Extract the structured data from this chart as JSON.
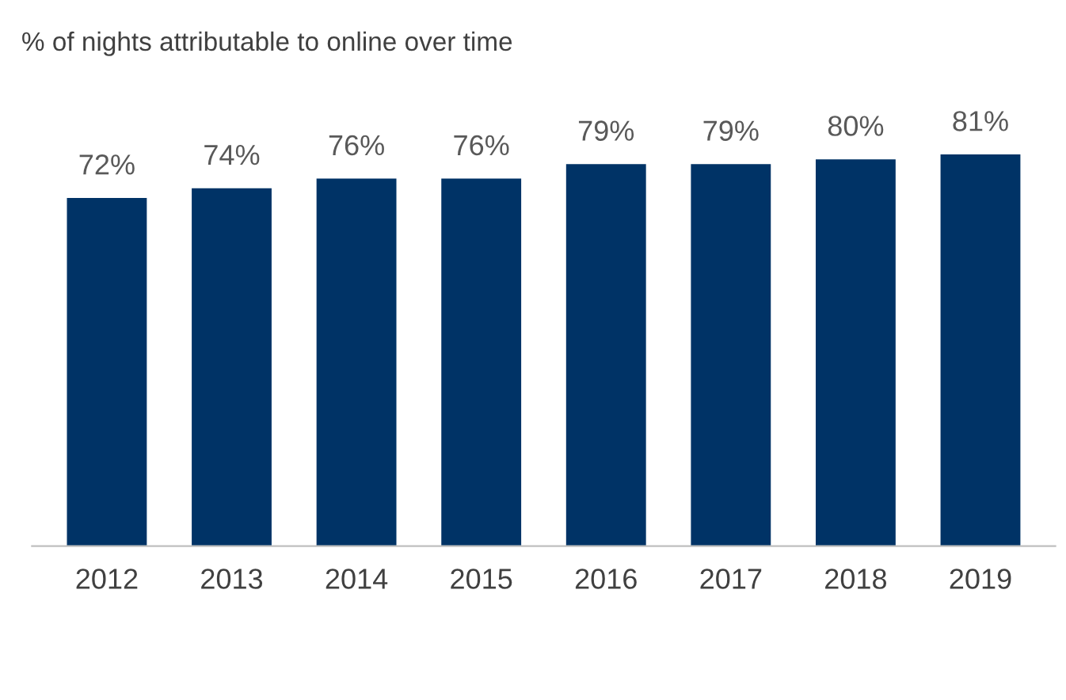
{
  "chart_data": {
    "type": "bar",
    "title": "% of nights attributable to online over time",
    "categories": [
      "2012",
      "2013",
      "2014",
      "2015",
      "2016",
      "2017",
      "2018",
      "2019"
    ],
    "values": [
      72,
      74,
      76,
      76,
      79,
      79,
      80,
      81
    ],
    "value_labels": [
      "72%",
      "74%",
      "76%",
      "76%",
      "79%",
      "79%",
      "80%",
      "81%"
    ],
    "color": "#003366",
    "grid": false,
    "legend": false
  }
}
